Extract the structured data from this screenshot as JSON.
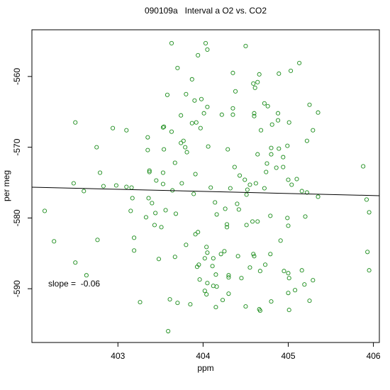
{
  "chart_data": {
    "type": "scatter",
    "title": "090109a   Interval a O2 vs. CO2",
    "xlabel": "ppm",
    "ylabel": "per meg",
    "annotation": "slope =  -0.06",
    "color": "#1a8c1a",
    "xlim": [
      401.99,
      406.07
    ],
    "ylim": [
      -597.6,
      -553.4
    ],
    "xticks": [
      403,
      404,
      405,
      406
    ],
    "yticks": [
      -590,
      -580,
      -570,
      -560
    ],
    "fit_line": {
      "color": "#000000",
      "x": [
        401.99,
        406.07
      ],
      "y": [
        -575.65,
        -576.85
      ]
    },
    "x": [
      403.63,
      404.03,
      404.05,
      404.5,
      403.94,
      403.7,
      403.87,
      405.13,
      404.89,
      405.03,
      404.35,
      404.66,
      404.59,
      404.61,
      404.38,
      403.8,
      403.58,
      403.9,
      403.98,
      404.64,
      402.5,
      402.94,
      403.1,
      403.53,
      404.01,
      404.05,
      404.22,
      404.35,
      404.35,
      404.6,
      404.6,
      404.72,
      404.76,
      404.88,
      405.25,
      405.35,
      404.88,
      404.68,
      405.01,
      404.81,
      403.74,
      403.87,
      403.92,
      403.97,
      403.63,
      403.35,
      403.54,
      402.75,
      403.35,
      403.54,
      403.74,
      403.77,
      403.79,
      403.81,
      404.06,
      404.29,
      404.64,
      404.8,
      404.8,
      404.89,
      404.94,
      404.99,
      405.29,
      405.22,
      403.1,
      403.37,
      403.37,
      403.53,
      403.67,
      402.79,
      402.6,
      402.83,
      402.98,
      403.16,
      403.45,
      403.53,
      403.64,
      403.91,
      404.09,
      404.37,
      404.43,
      404.49,
      404.55,
      404.62,
      404.74,
      404.75,
      404.86,
      404.94,
      405.0,
      405.04,
      405.1,
      405.16,
      405.22,
      405.35,
      405.88,
      405.92,
      403.75,
      403.89,
      404.32,
      404.52,
      404.51,
      404.72,
      403.17,
      403.36,
      403.4,
      403.15,
      403.56,
      403.44,
      403.68,
      404.14,
      404.16,
      404.26,
      404.28,
      404.28,
      404.4,
      404.42,
      404.51,
      404.58,
      404.64,
      404.79,
      404.99,
      405.0,
      405.2,
      405.95,
      403.33,
      403.43,
      403.51,
      402.76,
      403.19,
      403.19,
      403.48,
      403.67,
      403.91,
      403.94,
      403.8,
      404.04,
      404.05,
      404.12,
      404.21,
      404.25,
      404.02,
      404.11,
      404.41,
      404.59,
      404.6,
      404.79,
      404.91,
      404.73,
      404.55,
      404.67,
      404.15,
      403.95,
      403.93,
      403.96,
      404.05,
      404.3,
      404.3,
      404.45,
      404.95,
      405.0,
      405.01,
      405.16,
      405.29,
      405.08,
      405.0,
      405.19,
      404.3,
      404.12,
      404.16,
      404.15,
      404.23,
      404.02,
      404.04,
      404.5,
      404.66,
      404.67,
      405.01,
      405.25,
      403.61,
      403.26,
      402.5,
      402.63,
      402.25,
      402.14,
      402.48,
      403.59,
      403.7,
      403.85,
      405.93,
      405.95,
      404.8
    ],
    "y": [
      -555.3,
      -555.3,
      -556.2,
      -555.7,
      -557.0,
      -558.8,
      -560.4,
      -558.1,
      -559.6,
      -559.2,
      -559.5,
      -559.7,
      -561.0,
      -561.6,
      -562.1,
      -562.5,
      -562.6,
      -563.4,
      -563.2,
      -560.8,
      -566.5,
      -567.3,
      -567.6,
      -567.2,
      -565.2,
      -564.3,
      -565.4,
      -565.4,
      -564.5,
      -565.6,
      -565.2,
      -563.8,
      -564.2,
      -565.2,
      -564.0,
      -565.1,
      -566.2,
      -567.6,
      -566.5,
      -566.8,
      -565.5,
      -566.6,
      -566.5,
      -567.3,
      -567.8,
      -568.6,
      -567.1,
      -570.0,
      -570.4,
      -570.3,
      -569.4,
      -569.1,
      -570.0,
      -570.7,
      -569.9,
      -570.3,
      -571.0,
      -571.0,
      -570.1,
      -570.2,
      -571.4,
      -569.8,
      -567.6,
      -569.1,
      -575.6,
      -573.3,
      -573.5,
      -573.6,
      -572.2,
      -573.6,
      -576.2,
      -575.5,
      -575.4,
      -575.7,
      -574.7,
      -575.2,
      -576.1,
      -573.8,
      -575.7,
      -572.8,
      -574.0,
      -574.6,
      -575.3,
      -575.1,
      -573.5,
      -572.3,
      -572.9,
      -572.8,
      -574.6,
      -575.3,
      -574.5,
      -576.2,
      -576.4,
      -577.0,
      -572.7,
      -577.4,
      -575.1,
      -576.6,
      -575.8,
      -576.0,
      -576.7,
      -575.8,
      -577.2,
      -577.2,
      -577.9,
      -579.0,
      -578.9,
      -579.3,
      -579.4,
      -577.8,
      -579.5,
      -578.7,
      -580.9,
      -581.3,
      -578.0,
      -578.8,
      -581.0,
      -580.5,
      -580.5,
      -579.7,
      -580.0,
      -581.1,
      -579.8,
      -579.2,
      -579.9,
      -581.0,
      -581.3,
      -583.1,
      -582.8,
      -584.6,
      -585.8,
      -585.5,
      -582.3,
      -582.0,
      -583.8,
      -584.1,
      -584.9,
      -585.7,
      -585.1,
      -584.7,
      -585.7,
      -586.8,
      -585.4,
      -585.1,
      -585.4,
      -585.1,
      -583.2,
      -586.6,
      -587.0,
      -587.5,
      -588.0,
      -586.6,
      -586.9,
      -588.7,
      -589.2,
      -588.4,
      -588.1,
      -588.5,
      -587.5,
      -587.8,
      -588.5,
      -587.4,
      -588.8,
      -590.2,
      -590.6,
      -589.4,
      -590.7,
      -589.6,
      -589.7,
      -592.6,
      -591.6,
      -590.3,
      -590.8,
      -592.5,
      -592.9,
      -593.1,
      -593.0,
      -591.7,
      -591.5,
      -591.9,
      -586.3,
      -588.1,
      -583.3,
      -579.0,
      -575.1,
      -596.0,
      -592.0,
      -592.2,
      -584.8,
      -587.4,
      -591.8
    ]
  }
}
